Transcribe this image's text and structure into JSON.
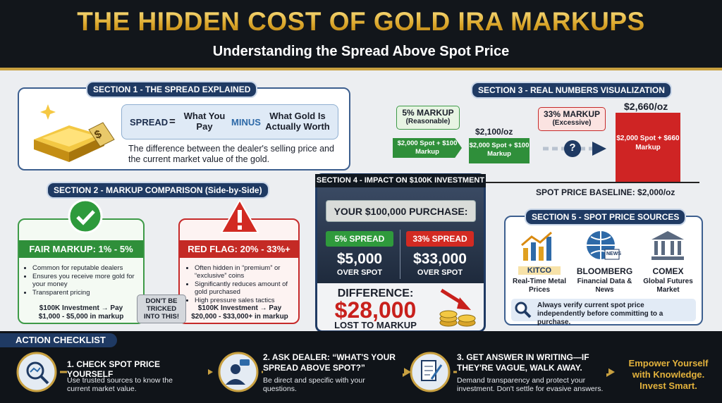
{
  "header": {
    "title": "THE HIDDEN COST OF GOLD IRA MARKUPS",
    "subtitle": "Understanding the Spread Above Spot Price"
  },
  "section1": {
    "title": "SECTION 1 - THE SPREAD EXPLAINED",
    "tag": "$",
    "formula": {
      "term": "SPREAD",
      "equals": "=",
      "left": "What You Pay",
      "operator": "MINUS",
      "right": "What Gold Is Actually Worth"
    },
    "description": "The difference between the dealer's selling price and the current market value of the gold."
  },
  "section2": {
    "title": "SECTION 2 - MARKUP COMPARISON (Side-by-Side)",
    "fair": {
      "heading": "FAIR MARKUP: 1% - 5%",
      "bullets": [
        "Common for reputable dealers",
        "Ensures you receive more gold for your money",
        "Transparent pricing"
      ],
      "example": "$100K Investment → Pay $1,000 - $5,000 in markup"
    },
    "red": {
      "heading": "RED FLAG: 20% - 33%+",
      "bullets": [
        "Often hidden in “premium” or “exclusive” coins",
        "Significantly reduces amount of gold purchased",
        "High pressure sales tactics"
      ],
      "example": "$100K Investment → Pay $20,000 - $33,000+ in markup"
    },
    "warning": "DON'T BE TRICKED INTO THIS!"
  },
  "section3": {
    "title": "SECTION 3 - REAL NUMBERS VISUALIZATION",
    "five": {
      "label": "5% MARKUP",
      "note": "(Reasonable)",
      "price": "$2,100/oz",
      "breakdown": "$2,000 Spot + $100 Markup"
    },
    "question": "?",
    "thirtythree": {
      "label": "33% MARKUP",
      "note": "(Excessive)",
      "price": "$2,660/oz",
      "breakdown": "$2,000 Spot + $660 Markup"
    },
    "baseline": "SPOT PRICE BASELINE: $2,000/oz"
  },
  "section4": {
    "title": "SECTION 4 - IMPACT ON $100K INVESTMENT",
    "purchase": "YOUR $100,000 PURCHASE:",
    "left": {
      "label": "5% SPREAD",
      "amount": "$5,000",
      "caption": "OVER SPOT"
    },
    "right": {
      "label": "33% SPREAD",
      "amount": "$33,000",
      "caption": "OVER SPOT"
    },
    "difference": {
      "label": "DIFFERENCE:",
      "amount": "$28,000",
      "caption": "LOST TO MARKUP"
    }
  },
  "section5": {
    "title": "SECTION 5 - SPOT PRICE SOURCES",
    "sources": [
      {
        "name": "KITCO",
        "description": "Real-Time Metal Prices"
      },
      {
        "name": "BLOOMBERG",
        "description": "Financial Data & News"
      },
      {
        "name": "COMEX",
        "description": "Global Futures Market"
      }
    ],
    "news_icon": "NEWS",
    "note": "Always verify current spot price independently before committing to a purchase."
  },
  "checklist": {
    "title": "ACTION CHECKLIST",
    "steps": [
      {
        "heading": "1. CHECK SPOT PRICE YOURSELF",
        "text": "Use trusted sources to know the current market value."
      },
      {
        "heading": "2. ASK DEALER: “WHAT'S YOUR SPREAD ABOVE SPOT?”",
        "text": "Be direct and specific with your questions."
      },
      {
        "heading": "3. GET ANSWER IN WRITING—IF THEY'RE VAGUE, WALK AWAY.",
        "text": "Demand transparency and protect your investment. Don't settle for evasive answers."
      }
    ],
    "closing": "Empower Yourself with Knowledge. Invest Smart."
  }
}
